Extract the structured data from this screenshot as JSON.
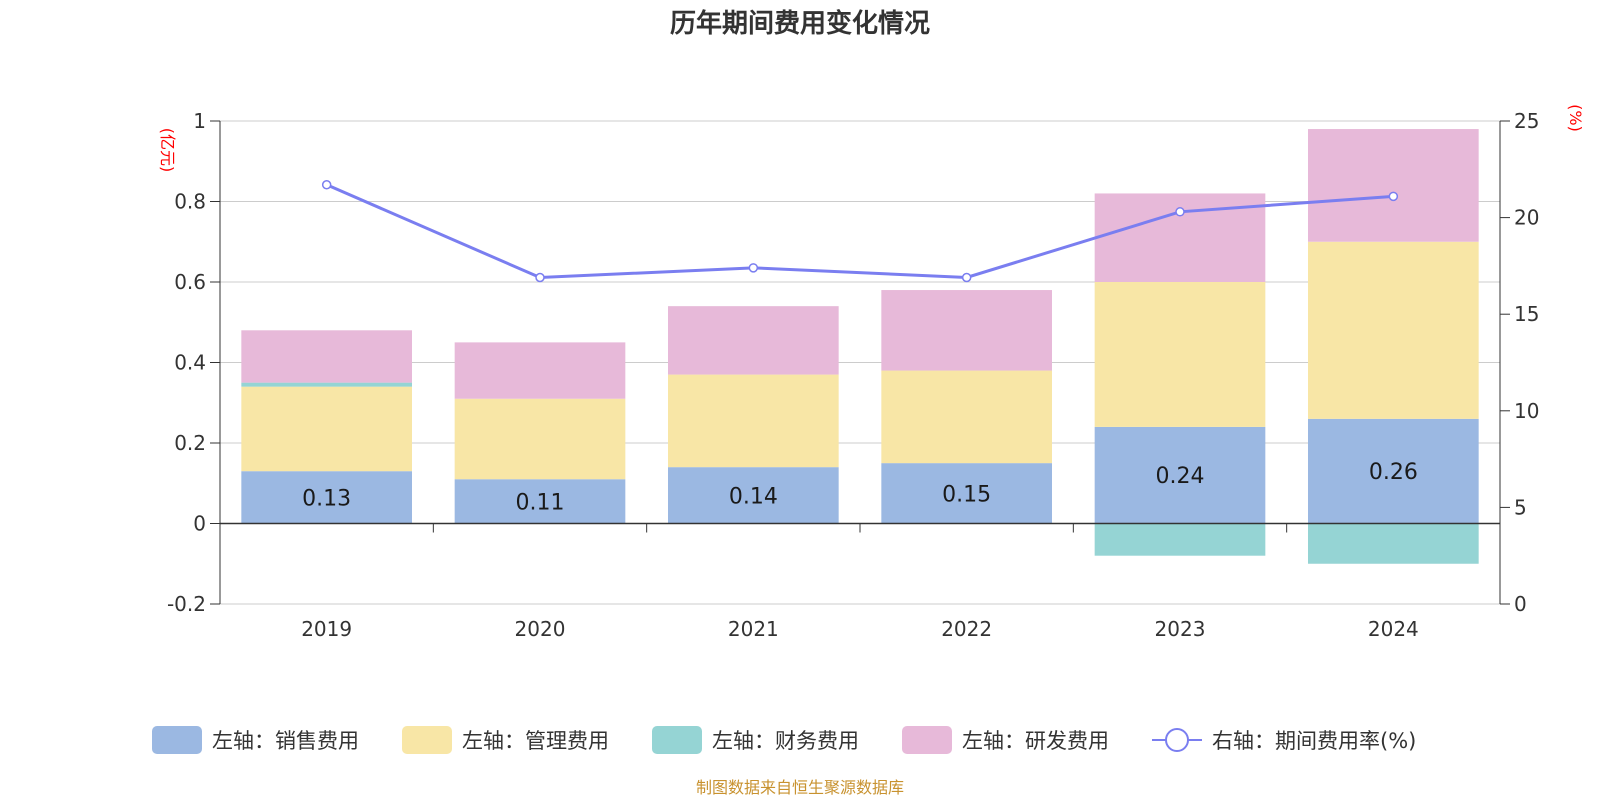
{
  "chart_data": {
    "type": "bar",
    "title": "历年期间费用变化情况",
    "categories": [
      "2019",
      "2020",
      "2021",
      "2022",
      "2023",
      "2024"
    ],
    "series": [
      {
        "name": "左轴：销售费用",
        "axis": "left",
        "kind": "bar",
        "color": "#9bb8e2",
        "values": [
          0.13,
          0.11,
          0.14,
          0.15,
          0.24,
          0.26
        ],
        "labels": [
          "0.13",
          "0.11",
          "0.14",
          "0.15",
          "0.24",
          "0.26"
        ]
      },
      {
        "name": "左轴：管理费用",
        "axis": "left",
        "kind": "bar",
        "color": "#f8e6a6",
        "values": [
          0.21,
          0.2,
          0.23,
          0.23,
          0.36,
          0.44
        ]
      },
      {
        "name": "左轴：财务费用",
        "axis": "left",
        "kind": "bar",
        "color": "#95d4d4",
        "values": [
          0.01,
          0.0,
          0.0,
          0.0,
          -0.08,
          -0.1
        ]
      },
      {
        "name": "左轴：研发费用",
        "axis": "left",
        "kind": "bar",
        "color": "#e7b9d9",
        "values": [
          0.13,
          0.14,
          0.17,
          0.2,
          0.22,
          0.28
        ]
      },
      {
        "name": "右轴：期间费用率(%)",
        "axis": "right",
        "kind": "line",
        "color": "#7a7ef0",
        "values": [
          21.7,
          16.9,
          17.4,
          16.9,
          20.3,
          21.1
        ]
      }
    ],
    "left_axis": {
      "unit": "(亿元)",
      "ylim": [
        -0.2,
        1
      ],
      "ticks": [
        "1",
        "0.8",
        "0.6",
        "0.4",
        "0.2",
        "0",
        "-0.2"
      ],
      "tick_values": [
        1,
        0.8,
        0.6,
        0.4,
        0.2,
        0,
        -0.2
      ]
    },
    "right_axis": {
      "unit": "(%)",
      "ylim": [
        0,
        25
      ],
      "ticks": [
        "25",
        "20",
        "15",
        "10",
        "5",
        "0"
      ],
      "tick_values": [
        25,
        20,
        15,
        10,
        5,
        0
      ]
    },
    "grid": true,
    "legend_position": "bottom"
  },
  "source_text": "制图数据来自恒生聚源数据库"
}
